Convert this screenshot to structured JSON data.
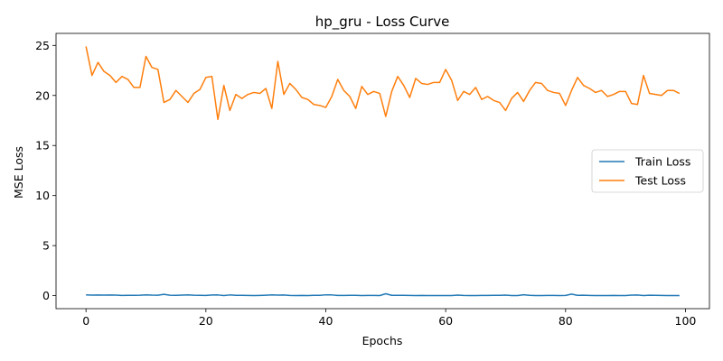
{
  "chart_data": {
    "type": "line",
    "title": "hp_gru - Loss Curve",
    "xlabel": "Epochs",
    "ylabel": "MSE Loss",
    "xlim": [
      -5,
      104
    ],
    "ylim": [
      -1.3,
      26.2
    ],
    "xticks": [
      0,
      20,
      40,
      60,
      80,
      100
    ],
    "yticks": [
      0,
      5,
      10,
      15,
      20,
      25
    ],
    "grid": false,
    "legend_position": "center-right",
    "x": [
      0,
      1,
      2,
      3,
      4,
      5,
      6,
      7,
      8,
      9,
      10,
      11,
      12,
      13,
      14,
      15,
      16,
      17,
      18,
      19,
      20,
      21,
      22,
      23,
      24,
      25,
      26,
      27,
      28,
      29,
      30,
      31,
      32,
      33,
      34,
      35,
      36,
      37,
      38,
      39,
      40,
      41,
      42,
      43,
      44,
      45,
      46,
      47,
      48,
      49,
      50,
      51,
      52,
      53,
      54,
      55,
      56,
      57,
      58,
      59,
      60,
      61,
      62,
      63,
      64,
      65,
      66,
      67,
      68,
      69,
      70,
      71,
      72,
      73,
      74,
      75,
      76,
      77,
      78,
      79,
      80,
      81,
      82,
      83,
      84,
      85,
      86,
      87,
      88,
      89,
      90,
      91,
      92,
      93,
      94,
      95,
      96,
      97,
      98,
      99
    ],
    "series": [
      {
        "name": "Train Loss",
        "color": "#1f77b4",
        "values": [
          0.08,
          0.05,
          0.06,
          0.05,
          0.06,
          0.05,
          0.02,
          0.03,
          0.03,
          0.04,
          0.08,
          0.05,
          0.04,
          0.13,
          0.04,
          0.03,
          0.05,
          0.07,
          0.04,
          0.03,
          0.02,
          0.06,
          0.07,
          0.01,
          0.07,
          0.03,
          0.03,
          0.02,
          0.01,
          0.02,
          0.04,
          0.07,
          0.05,
          0.06,
          0.02,
          0.01,
          0.02,
          0.01,
          0.03,
          0.03,
          0.08,
          0.07,
          0.02,
          0.02,
          0.03,
          0.03,
          0.01,
          0.02,
          0.02,
          0.01,
          0.19,
          0.03,
          0.03,
          0.03,
          0.02,
          0.01,
          0.02,
          0.01,
          0.01,
          0.01,
          0.01,
          0.01,
          0.05,
          0.02,
          0.01,
          0.01,
          0.02,
          0.02,
          0.03,
          0.03,
          0.05,
          0.01,
          0.01,
          0.09,
          0.03,
          0.01,
          0.01,
          0.02,
          0.02,
          0.01,
          0.02,
          0.15,
          0.03,
          0.04,
          0.02,
          0.01,
          0.01,
          0.01,
          0.02,
          0.01,
          0.01,
          0.05,
          0.06,
          0.01,
          0.04,
          0.03,
          0.02,
          0.01,
          0.01,
          0.01
        ]
      },
      {
        "name": "Test Loss",
        "color": "#ff7f0e",
        "values": [
          24.9,
          22.0,
          23.3,
          22.4,
          22.0,
          21.3,
          21.9,
          21.6,
          20.8,
          20.8,
          23.9,
          22.8,
          22.6,
          19.3,
          19.6,
          20.5,
          19.9,
          19.3,
          20.2,
          20.6,
          21.8,
          21.9,
          17.6,
          21.0,
          18.5,
          20.1,
          19.7,
          20.1,
          20.3,
          20.2,
          20.7,
          18.7,
          23.4,
          20.1,
          21.2,
          20.6,
          19.8,
          19.6,
          19.1,
          19.0,
          18.8,
          19.9,
          21.6,
          20.5,
          19.9,
          18.7,
          20.9,
          20.1,
          20.4,
          20.2,
          17.9,
          20.4,
          21.9,
          21.0,
          19.8,
          21.7,
          21.2,
          21.1,
          21.3,
          21.3,
          22.6,
          21.5,
          19.5,
          20.4,
          20.1,
          20.8,
          19.6,
          19.9,
          19.5,
          19.3,
          18.5,
          19.7,
          20.3,
          19.4,
          20.5,
          21.3,
          21.2,
          20.5,
          20.3,
          20.2,
          19.0,
          20.5,
          21.8,
          21.0,
          20.7,
          20.3,
          20.5,
          19.9,
          20.1,
          20.4,
          20.4,
          19.2,
          19.1,
          22.0,
          20.2,
          20.1,
          20.0,
          20.5,
          20.5,
          20.2
        ]
      }
    ]
  }
}
